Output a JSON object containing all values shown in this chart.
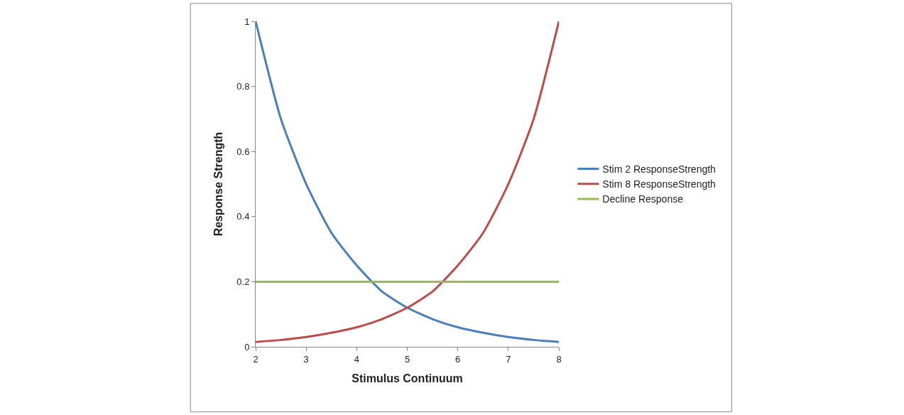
{
  "chart_data": {
    "type": "line",
    "xlabel": "Stimulus Continuum",
    "ylabel": "Response Strength",
    "series": [
      {
        "name": "Stim 2 ResponseStrength",
        "color": "#4a7ebb",
        "x": [
          2,
          2.5,
          3,
          3.5,
          4,
          4.5,
          5,
          5.5,
          6,
          6.5,
          7,
          7.5,
          8
        ],
        "values": [
          1,
          0.7,
          0.5,
          0.35,
          0.25,
          0.17,
          0.12,
          0.085,
          0.06,
          0.043,
          0.03,
          0.021,
          0.015
        ]
      },
      {
        "name": "Stim 8 ResponseStrength",
        "color": "#be4b48",
        "x": [
          2,
          2.5,
          3,
          3.5,
          4,
          4.5,
          5,
          5.5,
          6,
          6.5,
          7,
          7.5,
          8
        ],
        "values": [
          0.015,
          0.021,
          0.03,
          0.043,
          0.06,
          0.085,
          0.12,
          0.17,
          0.25,
          0.35,
          0.5,
          0.7,
          1
        ]
      },
      {
        "name": "Decline Response",
        "color": "#98b954",
        "x": [
          2,
          8
        ],
        "values": [
          0.2,
          0.2
        ]
      }
    ],
    "xlim": [
      2,
      8
    ],
    "xticks": [
      2,
      3,
      4,
      5,
      6,
      7,
      8
    ],
    "ylim": [
      0,
      1
    ],
    "yticks": [
      0,
      0.2,
      0.4,
      0.6,
      0.8,
      1
    ],
    "legend": "right",
    "marker": "none",
    "line_style": "solid"
  }
}
